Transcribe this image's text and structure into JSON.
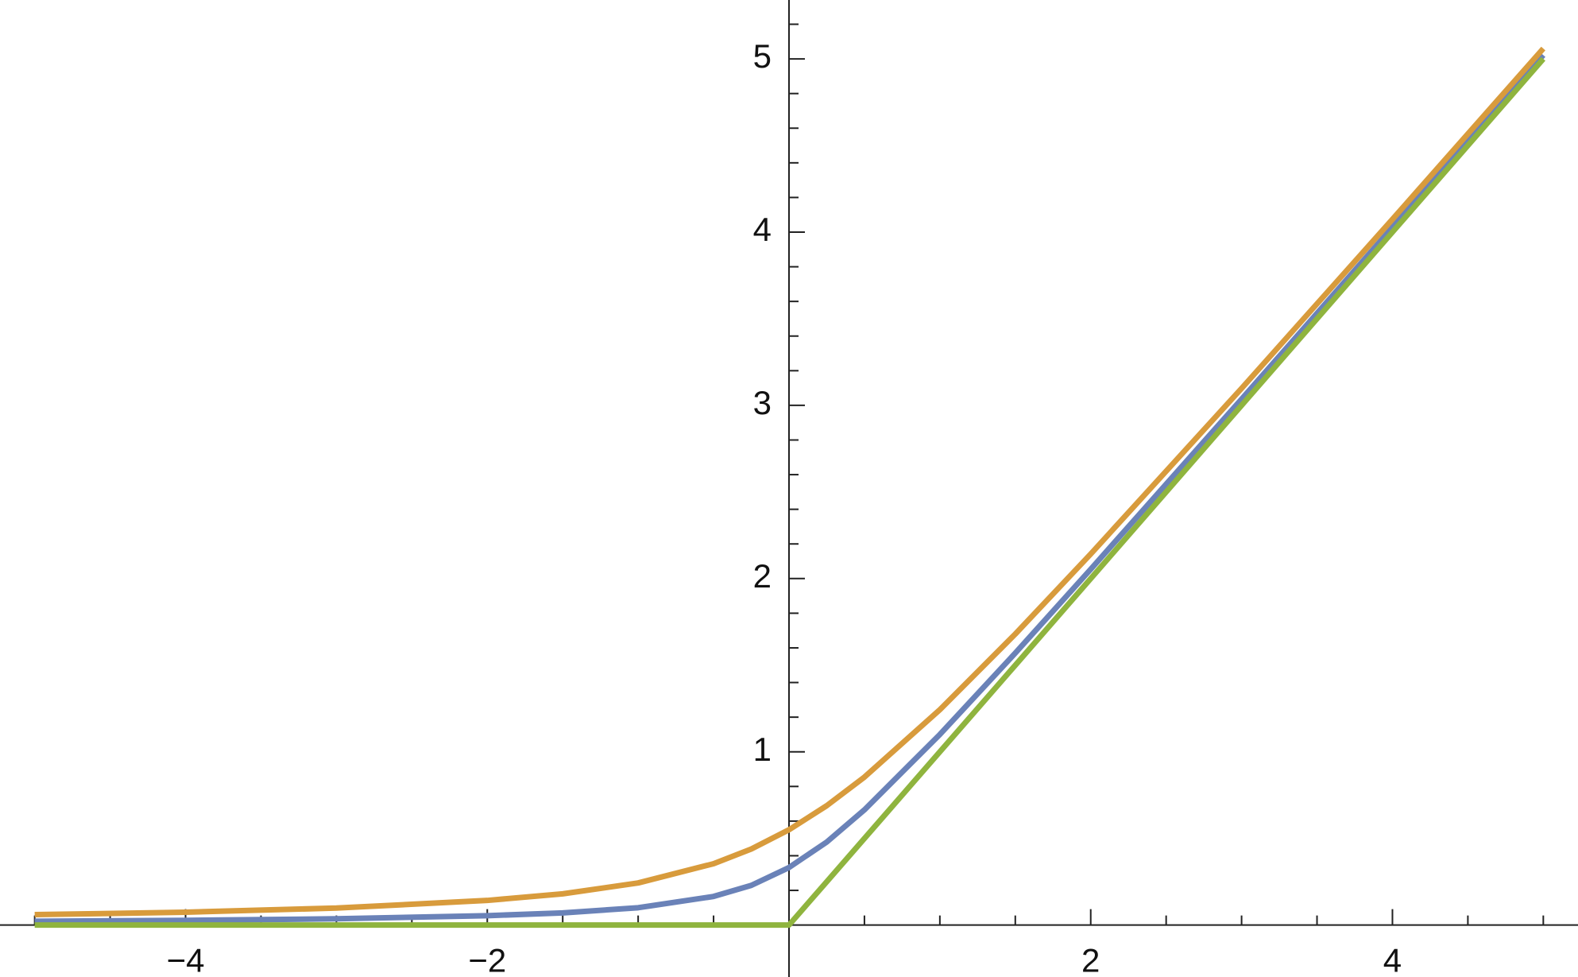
{
  "chart_data": {
    "type": "line",
    "x": [
      -5,
      -4,
      -3,
      -2,
      -1.5,
      -1,
      -0.5,
      -0.25,
      0,
      0.25,
      0.5,
      1,
      1.5,
      2,
      3,
      4,
      5
    ],
    "series": [
      {
        "color": "#6a82b8",
        "values": [
          0.022,
          0.027,
          0.036,
          0.054,
          0.07,
          0.1,
          0.165,
          0.229,
          0.332,
          0.479,
          0.665,
          1.1,
          1.57,
          2.054,
          3.036,
          4.027,
          5.022
        ]
      },
      {
        "color": "#d89b3c",
        "values": [
          0.06,
          0.074,
          0.098,
          0.142,
          0.18,
          0.243,
          0.354,
          0.439,
          0.55,
          0.689,
          0.854,
          1.243,
          1.68,
          2.142,
          3.098,
          4.074,
          5.06
        ]
      },
      {
        "color": "#8fb43e",
        "values": [
          0,
          0,
          0,
          0,
          0,
          0,
          0,
          0,
          0,
          0.25,
          0.5,
          1,
          1.5,
          2,
          3,
          4,
          5
        ]
      }
    ],
    "xlim": [
      -5.23,
      5.23
    ],
    "ylim": [
      -0.3,
      5.34
    ],
    "xticks": [
      {
        "value": -4,
        "label": "−4"
      },
      {
        "value": -2,
        "label": "−2"
      },
      2,
      4
    ],
    "yticks": [
      1,
      2,
      3,
      4,
      5
    ],
    "xminorticks": [
      -5,
      -4.5,
      -3.5,
      -3,
      -2.5,
      -1.5,
      -1,
      -0.5,
      0.5,
      1,
      1.5,
      2.5,
      3,
      3.5,
      4.5,
      5
    ],
    "yminorticks": [
      0.2,
      0.4,
      0.6,
      0.8,
      1.2,
      1.4,
      1.6,
      1.8,
      2.2,
      2.4,
      2.6,
      2.8,
      3.2,
      3.4,
      3.6,
      3.8,
      4.2,
      4.4,
      4.6,
      4.8,
      5.2
    ]
  }
}
